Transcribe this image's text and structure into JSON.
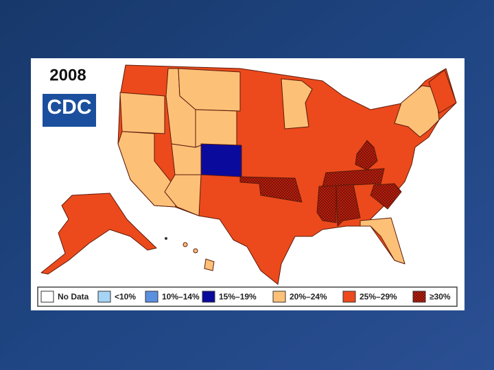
{
  "title": "2008",
  "logo": "CDC",
  "legend": [
    {
      "label": "No Data",
      "color": "#ffffff"
    },
    {
      "label": "<10%",
      "color": "#a6d4f5"
    },
    {
      "label": "10%–14%",
      "color": "#5b8fe0"
    },
    {
      "label": "15%–19%",
      "color": "#0a0a9c"
    },
    {
      "label": "20%–24%",
      "color": "#fdc077"
    },
    {
      "label": "25%–29%",
      "color": "#ec4a1c"
    },
    {
      "label": "≥30%",
      "color": "#a01a0e",
      "hatched": true
    }
  ]
}
